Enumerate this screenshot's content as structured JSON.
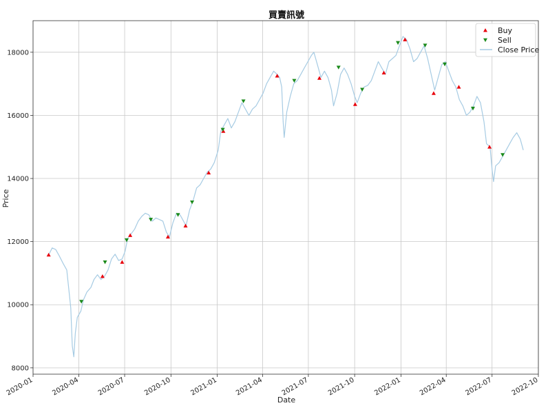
{
  "chart_data": {
    "type": "line",
    "title": "買賣訊號",
    "xlabel": "Date",
    "ylabel": "Price",
    "grid": true,
    "legend_position": "top-right",
    "x_range": [
      "2020-01-01",
      "2022-10-01"
    ],
    "ylim": [
      7800,
      19000
    ],
    "x_ticks": [
      "2020-01",
      "2020-04",
      "2020-07",
      "2020-10",
      "2021-01",
      "2021-04",
      "2021-07",
      "2021-10",
      "2022-01",
      "2022-04",
      "2022-07",
      "2022-10"
    ],
    "y_ticks": [
      8000,
      10000,
      12000,
      14000,
      16000,
      18000
    ],
    "colors": {
      "close": "#a6cbe3",
      "buy": "#e8000b",
      "sell": "#1a8a1a"
    },
    "series": [
      {
        "name": "Close Price",
        "points": [
          [
            "2020-02-01",
            11580
          ],
          [
            "2020-02-08",
            11800
          ],
          [
            "2020-02-15",
            11750
          ],
          [
            "2020-02-22",
            11550
          ],
          [
            "2020-03-01",
            11300
          ],
          [
            "2020-03-08",
            11100
          ],
          [
            "2020-03-12",
            10500
          ],
          [
            "2020-03-16",
            9900
          ],
          [
            "2020-03-19",
            8700
          ],
          [
            "2020-03-22",
            8350
          ],
          [
            "2020-03-25",
            9100
          ],
          [
            "2020-03-29",
            9600
          ],
          [
            "2020-04-05",
            9800
          ],
          [
            "2020-04-10",
            10150
          ],
          [
            "2020-04-17",
            10400
          ],
          [
            "2020-04-25",
            10550
          ],
          [
            "2020-05-01",
            10800
          ],
          [
            "2020-05-08",
            10950
          ],
          [
            "2020-05-15",
            10800
          ],
          [
            "2020-05-22",
            10900
          ],
          [
            "2020-05-29",
            11100
          ],
          [
            "2020-06-05",
            11450
          ],
          [
            "2020-06-12",
            11600
          ],
          [
            "2020-06-19",
            11400
          ],
          [
            "2020-06-26",
            11450
          ],
          [
            "2020-07-02",
            11700
          ],
          [
            "2020-07-07",
            12100
          ],
          [
            "2020-07-14",
            12250
          ],
          [
            "2020-07-21",
            12400
          ],
          [
            "2020-07-28",
            12650
          ],
          [
            "2020-08-04",
            12800
          ],
          [
            "2020-08-11",
            12900
          ],
          [
            "2020-08-18",
            12850
          ],
          [
            "2020-08-25",
            12650
          ],
          [
            "2020-09-01",
            12750
          ],
          [
            "2020-09-08",
            12700
          ],
          [
            "2020-09-15",
            12650
          ],
          [
            "2020-09-22",
            12300
          ],
          [
            "2020-09-28",
            12150
          ],
          [
            "2020-10-05",
            12600
          ],
          [
            "2020-10-12",
            12900
          ],
          [
            "2020-10-19",
            12850
          ],
          [
            "2020-10-26",
            12650
          ],
          [
            "2020-10-31",
            12500
          ],
          [
            "2020-11-07",
            13000
          ],
          [
            "2020-11-14",
            13300
          ],
          [
            "2020-11-21",
            13700
          ],
          [
            "2020-11-28",
            13800
          ],
          [
            "2020-12-05",
            14000
          ],
          [
            "2020-12-12",
            14200
          ],
          [
            "2020-12-19",
            14300
          ],
          [
            "2020-12-26",
            14500
          ],
          [
            "2021-01-03",
            14900
          ],
          [
            "2021-01-08",
            15500
          ],
          [
            "2021-01-15",
            15700
          ],
          [
            "2021-01-22",
            15900
          ],
          [
            "2021-01-29",
            15600
          ],
          [
            "2021-02-05",
            15800
          ],
          [
            "2021-02-12",
            16100
          ],
          [
            "2021-02-19",
            16400
          ],
          [
            "2021-02-26",
            16200
          ],
          [
            "2021-03-05",
            16000
          ],
          [
            "2021-03-12",
            16200
          ],
          [
            "2021-03-19",
            16300
          ],
          [
            "2021-03-26",
            16500
          ],
          [
            "2021-04-02",
            16700
          ],
          [
            "2021-04-09",
            17000
          ],
          [
            "2021-04-16",
            17200
          ],
          [
            "2021-04-23",
            17400
          ],
          [
            "2021-04-30",
            17300
          ],
          [
            "2021-05-05",
            17200
          ],
          [
            "2021-05-09",
            16900
          ],
          [
            "2021-05-12",
            15800
          ],
          [
            "2021-05-14",
            15300
          ],
          [
            "2021-05-19",
            16100
          ],
          [
            "2021-05-26",
            16600
          ],
          [
            "2021-06-02",
            17000
          ],
          [
            "2021-06-09",
            17100
          ],
          [
            "2021-06-16",
            17300
          ],
          [
            "2021-06-23",
            17500
          ],
          [
            "2021-06-30",
            17700
          ],
          [
            "2021-07-07",
            17900
          ],
          [
            "2021-07-12",
            18000
          ],
          [
            "2021-07-19",
            17600
          ],
          [
            "2021-07-26",
            17200
          ],
          [
            "2021-08-02",
            17400
          ],
          [
            "2021-08-09",
            17200
          ],
          [
            "2021-08-16",
            16800
          ],
          [
            "2021-08-20",
            16300
          ],
          [
            "2021-08-27",
            16700
          ],
          [
            "2021-09-03",
            17300
          ],
          [
            "2021-09-10",
            17500
          ],
          [
            "2021-09-17",
            17300
          ],
          [
            "2021-09-24",
            17000
          ],
          [
            "2021-10-01",
            16600
          ],
          [
            "2021-10-06",
            16400
          ],
          [
            "2021-10-13",
            16700
          ],
          [
            "2021-10-20",
            16900
          ],
          [
            "2021-10-27",
            16950
          ],
          [
            "2021-11-03",
            17100
          ],
          [
            "2021-11-10",
            17400
          ],
          [
            "2021-11-17",
            17700
          ],
          [
            "2021-11-24",
            17500
          ],
          [
            "2021-12-01",
            17300
          ],
          [
            "2021-12-08",
            17700
          ],
          [
            "2021-12-15",
            17800
          ],
          [
            "2021-12-22",
            17900
          ],
          [
            "2021-12-29",
            18200
          ],
          [
            "2022-01-05",
            18500
          ],
          [
            "2022-01-12",
            18400
          ],
          [
            "2022-01-19",
            18100
          ],
          [
            "2022-01-26",
            17700
          ],
          [
            "2022-02-02",
            17800
          ],
          [
            "2022-02-09",
            18000
          ],
          [
            "2022-02-16",
            18200
          ],
          [
            "2022-02-23",
            17800
          ],
          [
            "2022-03-02",
            17300
          ],
          [
            "2022-03-09",
            16800
          ],
          [
            "2022-03-16",
            17200
          ],
          [
            "2022-03-23",
            17600
          ],
          [
            "2022-03-30",
            17700
          ],
          [
            "2022-04-06",
            17400
          ],
          [
            "2022-04-13",
            17100
          ],
          [
            "2022-04-20",
            16900
          ],
          [
            "2022-04-27",
            16500
          ],
          [
            "2022-05-04",
            16300
          ],
          [
            "2022-05-11",
            16000
          ],
          [
            "2022-05-18",
            16100
          ],
          [
            "2022-05-25",
            16300
          ],
          [
            "2022-06-01",
            16600
          ],
          [
            "2022-06-08",
            16400
          ],
          [
            "2022-06-15",
            15800
          ],
          [
            "2022-06-20",
            15100
          ],
          [
            "2022-06-27",
            15000
          ],
          [
            "2022-07-01",
            14300
          ],
          [
            "2022-07-04",
            13900
          ],
          [
            "2022-07-08",
            14400
          ],
          [
            "2022-07-15",
            14500
          ],
          [
            "2022-07-22",
            14700
          ],
          [
            "2022-07-29",
            14900
          ],
          [
            "2022-08-05",
            15100
          ],
          [
            "2022-08-12",
            15300
          ],
          [
            "2022-08-19",
            15450
          ],
          [
            "2022-08-26",
            15250
          ],
          [
            "2022-09-01",
            14900
          ]
        ]
      },
      {
        "name": "Buy",
        "points": [
          [
            "2020-02-01",
            11580
          ],
          [
            "2020-05-18",
            10900
          ],
          [
            "2020-06-26",
            11350
          ],
          [
            "2020-07-12",
            12200
          ],
          [
            "2020-09-25",
            12150
          ],
          [
            "2020-10-30",
            12500
          ],
          [
            "2020-12-15",
            14180
          ],
          [
            "2021-01-13",
            15500
          ],
          [
            "2021-04-30",
            17250
          ],
          [
            "2021-07-23",
            17180
          ],
          [
            "2021-10-02",
            16350
          ],
          [
            "2021-11-28",
            17350
          ],
          [
            "2022-01-09",
            18400
          ],
          [
            "2022-03-07",
            16700
          ],
          [
            "2022-04-26",
            16900
          ],
          [
            "2022-06-26",
            15000
          ]
        ]
      },
      {
        "name": "Sell",
        "points": [
          [
            "2020-04-06",
            10100
          ],
          [
            "2020-05-23",
            11350
          ],
          [
            "2020-07-05",
            12050
          ],
          [
            "2020-08-22",
            12700
          ],
          [
            "2020-10-15",
            12850
          ],
          [
            "2020-11-12",
            13250
          ],
          [
            "2021-01-12",
            15550
          ],
          [
            "2021-02-22",
            16450
          ],
          [
            "2021-06-03",
            17100
          ],
          [
            "2021-08-30",
            17520
          ],
          [
            "2021-10-16",
            16820
          ],
          [
            "2021-12-26",
            18300
          ],
          [
            "2022-02-18",
            18220
          ],
          [
            "2022-03-29",
            17620
          ],
          [
            "2022-05-24",
            16220
          ],
          [
            "2022-07-22",
            14750
          ]
        ]
      }
    ]
  }
}
